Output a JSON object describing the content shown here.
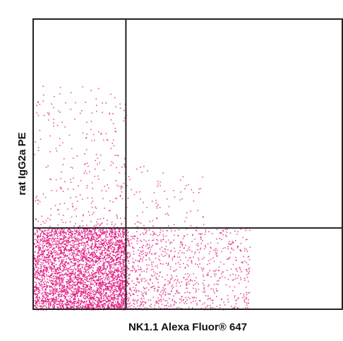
{
  "chart_data": {
    "type": "scatter",
    "title": "",
    "xlabel": "NK1.1 Alexa Fluor® 647",
    "ylabel": "rat IgG2a PE",
    "xlim": [
      0,
      1
    ],
    "ylim": [
      0,
      1
    ],
    "grid": false,
    "point_color": "#e0157f",
    "quadrant_gates": {
      "x": 0.3,
      "y": 0.28
    },
    "populations": [
      {
        "name": "",
        "count": 3600,
        "x_range": [
          0.0,
          0.3
        ],
        "y_range": [
          0.0,
          0.28
        ]
      },
      {
        "name": "",
        "count": 950,
        "x_range": [
          0.3,
          0.7
        ],
        "y_range": [
          0.0,
          0.28
        ]
      },
      {
        "name": "",
        "count": 300,
        "x_range": [
          0.0,
          0.3
        ],
        "y_range": [
          0.28,
          0.78
        ]
      },
      {
        "name": "",
        "count": 80,
        "x_range": [
          0.3,
          0.55
        ],
        "y_range": [
          0.28,
          0.5
        ]
      }
    ]
  }
}
